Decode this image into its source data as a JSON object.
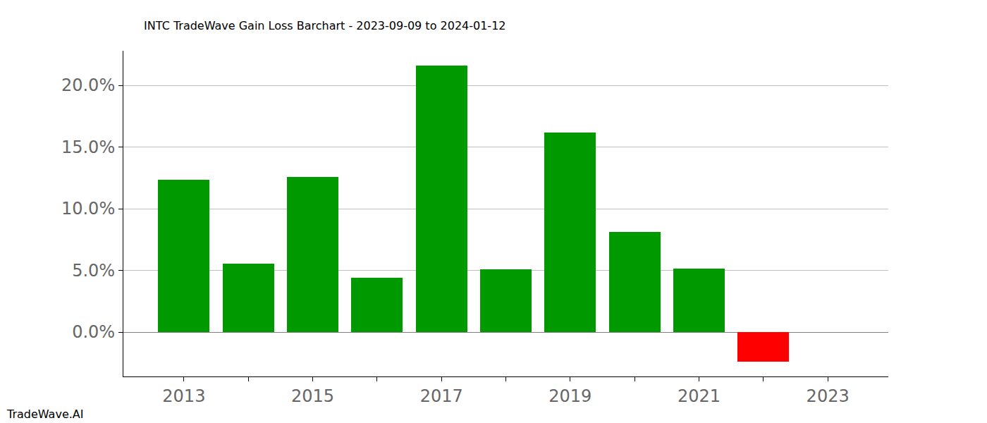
{
  "chart_data": {
    "type": "bar",
    "title": "INTC TradeWave Gain Loss Barchart - 2023-09-09 to 2024-01-12",
    "annotations": [
      "TradeWave.AI"
    ],
    "x": [
      2013,
      2014,
      2015,
      2016,
      2017,
      2018,
      2019,
      2020,
      2021,
      2022,
      2023
    ],
    "values": [
      12.34,
      5.54,
      12.57,
      4.4,
      21.6,
      5.09,
      16.17,
      8.11,
      5.14,
      -2.4,
      0
    ],
    "colors": [
      "#009900",
      "#009900",
      "#009900",
      "#009900",
      "#009900",
      "#009900",
      "#009900",
      "#009900",
      "#009900",
      "#ff0000",
      "#009900"
    ],
    "xlim": [
      2012.06,
      2023.94
    ],
    "xticks": [
      2013,
      2015,
      2017,
      2019,
      2021,
      2023
    ],
    "ylim": [
      -3.6,
      22.8
    ],
    "yticks": [
      {
        "value": 0,
        "label": "0.0%"
      },
      {
        "value": 5,
        "label": "5.0%"
      },
      {
        "value": 10,
        "label": "10.0%"
      },
      {
        "value": 15,
        "label": "15.0%"
      },
      {
        "value": 20,
        "label": "20.0%"
      }
    ],
    "grid": "y"
  }
}
